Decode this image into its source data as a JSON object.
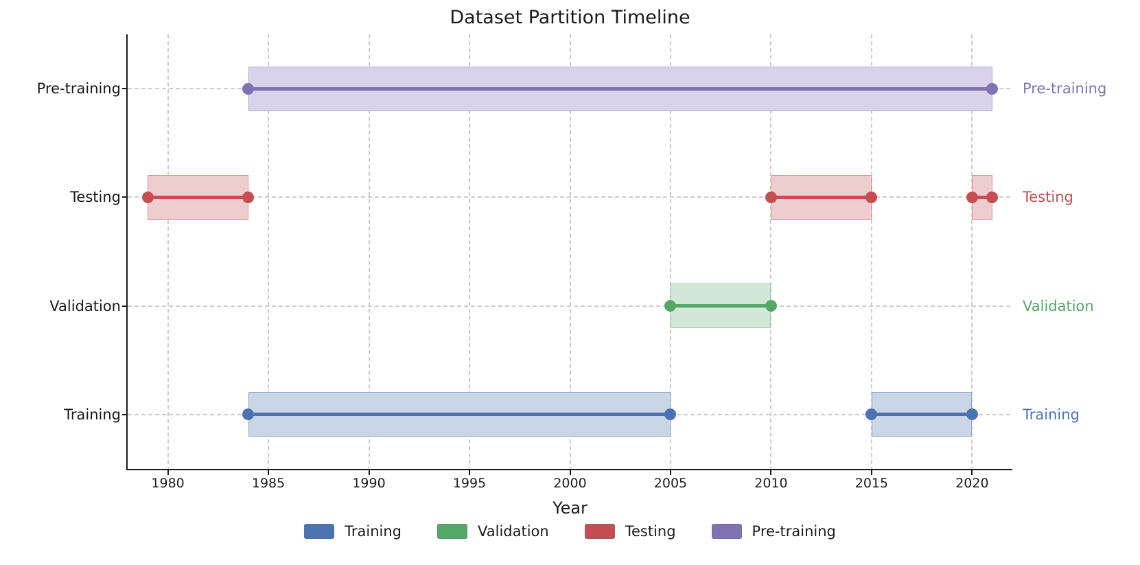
{
  "title": "Dataset Partition Timeline",
  "chart_data": {
    "type": "timeline",
    "title": "Dataset Partition Timeline",
    "xlabel": "Year",
    "xlim": [
      1978,
      2022
    ],
    "x_ticks": [
      1980,
      1985,
      1990,
      1995,
      2000,
      2005,
      2010,
      2015,
      2020
    ],
    "grid": "dashed-both-axes",
    "legend_position": "bottom-center",
    "rows": [
      {
        "label": "Pre-training",
        "color": "#8172b2",
        "band_color": "#d8d3ea",
        "segments": [
          [
            1984,
            2021
          ]
        ]
      },
      {
        "label": "Testing",
        "color": "#c44e52",
        "band_color": "#eecdce",
        "segments": [
          [
            1979,
            1984
          ],
          [
            2010,
            2015
          ],
          [
            2020,
            2021
          ]
        ]
      },
      {
        "label": "Validation",
        "color": "#55a868",
        "band_color": "#d2e7d7",
        "segments": [
          [
            2005,
            2010
          ]
        ]
      },
      {
        "label": "Training",
        "color": "#4c72b0",
        "band_color": "#cad5e6",
        "segments": [
          [
            1984,
            2005
          ],
          [
            2015,
            2020
          ]
        ]
      }
    ],
    "legend": [
      {
        "label": "Training",
        "color": "#4c72b0"
      },
      {
        "label": "Validation",
        "color": "#55a868"
      },
      {
        "label": "Testing",
        "color": "#c44e52"
      },
      {
        "label": "Pre-training",
        "color": "#8172b2"
      }
    ],
    "axis_color": "#1a1a1a",
    "grid_color": "#cccccc"
  }
}
